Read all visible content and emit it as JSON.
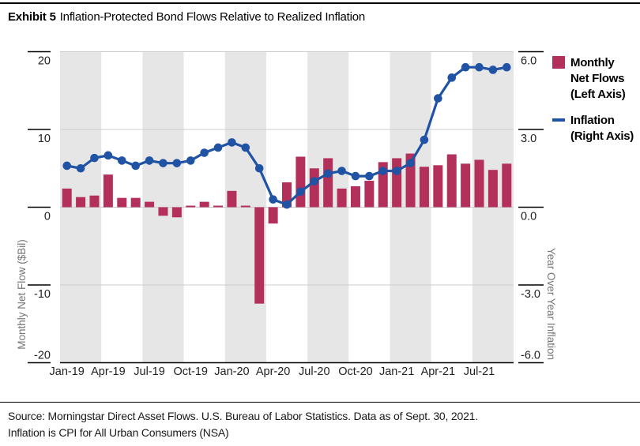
{
  "title": {
    "exhibit": "Exhibit 5",
    "text": "Inflation-Protected Bond Flows Relative to Realized Inflation"
  },
  "legend": {
    "flows": {
      "label": "Monthly Net Flows (Left Axis)",
      "lines": [
        "Monthly",
        "Net Flows",
        "(Left Axis)"
      ],
      "color": "#b3305a"
    },
    "inflation": {
      "label": "Inflation (Right Axis)",
      "lines": [
        "Inflation",
        "(Right Axis)"
      ],
      "color": "#2053a4"
    }
  },
  "source_lines": [
    "Source: Morningstar Direct Asset Flows. U.S. Bureau of Labor Statistics. Data as of Sept. 30, 2021.",
    "Inflation is CPI for All Urban Consumers (NSA)"
  ],
  "chart_data": {
    "type": "bar",
    "subtype": "bar-and-line-dual-axis",
    "x": [
      "Jan-19",
      "Feb-19",
      "Mar-19",
      "Apr-19",
      "May-19",
      "Jun-19",
      "Jul-19",
      "Aug-19",
      "Sep-19",
      "Oct-19",
      "Nov-19",
      "Dec-19",
      "Jan-20",
      "Feb-20",
      "Mar-20",
      "Apr-20",
      "May-20",
      "Jun-20",
      "Jul-20",
      "Aug-20",
      "Sep-20",
      "Oct-20",
      "Nov-20",
      "Dec-20",
      "Jan-21",
      "Feb-21",
      "Mar-21",
      "Apr-21",
      "May-21",
      "Jun-21",
      "Jul-21",
      "Aug-21",
      "Sep-21"
    ],
    "x_tick_labels": [
      "Jan-19",
      "Apr-19",
      "Jul-19",
      "Oct-19",
      "Jan-20",
      "Apr-20",
      "Jul-20",
      "Oct-20",
      "Jan-21",
      "Apr-21",
      "Jul-21"
    ],
    "series": [
      {
        "name": "Monthly Net Flows (Left Axis)",
        "type": "bar",
        "axis": "left",
        "color": "#b3305a",
        "values": [
          2.4,
          1.3,
          1.5,
          4.2,
          1.2,
          1.2,
          0.7,
          -1.1,
          -1.3,
          0.2,
          0.7,
          0.2,
          2.1,
          0.2,
          -12.4,
          -2.1,
          3.2,
          6.5,
          5.0,
          6.3,
          2.4,
          2.7,
          3.4,
          5.8,
          6.3,
          6.9,
          5.2,
          5.4,
          6.8,
          5.6,
          6.1,
          4.8,
          5.6
        ]
      },
      {
        "name": "Inflation (Right Axis)",
        "type": "line",
        "axis": "right",
        "color": "#2053a4",
        "values": [
          1.6,
          1.5,
          1.9,
          2.0,
          1.8,
          1.6,
          1.8,
          1.7,
          1.7,
          1.8,
          2.1,
          2.3,
          2.5,
          2.3,
          1.5,
          0.3,
          0.1,
          0.6,
          1.0,
          1.3,
          1.4,
          1.2,
          1.2,
          1.4,
          1.4,
          1.7,
          2.6,
          4.2,
          5.0,
          5.4,
          5.4,
          5.3,
          5.4
        ]
      }
    ],
    "left_axis": {
      "label": "Monthly Net Flow ($Bil)",
      "ticks": [
        20,
        10,
        0,
        -10,
        -20
      ],
      "tick_labels": [
        "20",
        "10",
        "0",
        "-10",
        "-20"
      ],
      "range": [
        -20,
        20
      ]
    },
    "right_axis": {
      "label": "Year Over Year Inflation",
      "ticks": [
        6,
        3,
        0,
        -3,
        -6
      ],
      "tick_labels": [
        "6.0",
        "3.0",
        "0.0",
        "-3.0",
        "-6.0"
      ],
      "range": [
        -6,
        6
      ]
    },
    "grid": true,
    "band_color": "#e6e6e6",
    "gridline_color": "#cccccc",
    "bands": "alternating quarterly shading starting gray at Jan-19",
    "legend_position": "top-right"
  }
}
